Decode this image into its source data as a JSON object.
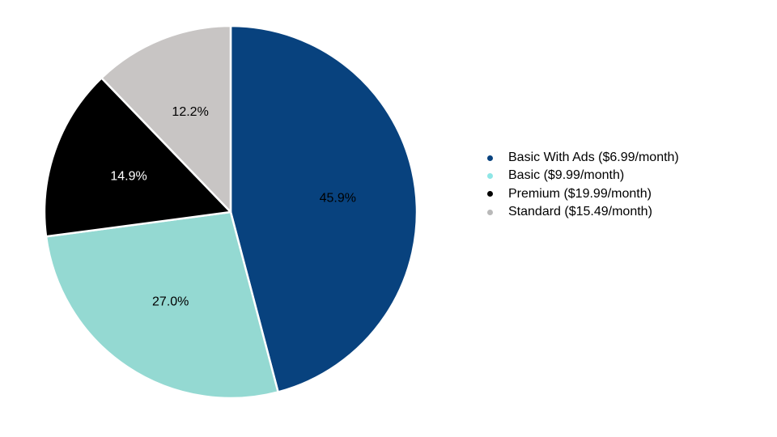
{
  "chart_data": {
    "type": "pie",
    "title": "",
    "series": [
      {
        "label": "Basic With Ads ($6.99/month)",
        "value": 45.9,
        "display": "45.9%",
        "color": "#08427e",
        "label_color": "#000000"
      },
      {
        "label": "Basic ($9.99/month)",
        "value": 27.0,
        "display": "27.0%",
        "color": "#94d9d2",
        "label_color": "#000000"
      },
      {
        "label": "Premium ($19.99/month)",
        "value": 14.9,
        "display": "14.9%",
        "color": "#000000",
        "label_color": "#ffffff"
      },
      {
        "label": "Standard ($15.49/month)",
        "value": 12.2,
        "display": "12.2%",
        "color": "#c8c5c4",
        "label_color": "#000000"
      }
    ],
    "legend_position": "right",
    "legend_marker_colors": [
      "#08427e",
      "#8ee6e6",
      "#000000",
      "#b9b9b9"
    ]
  }
}
